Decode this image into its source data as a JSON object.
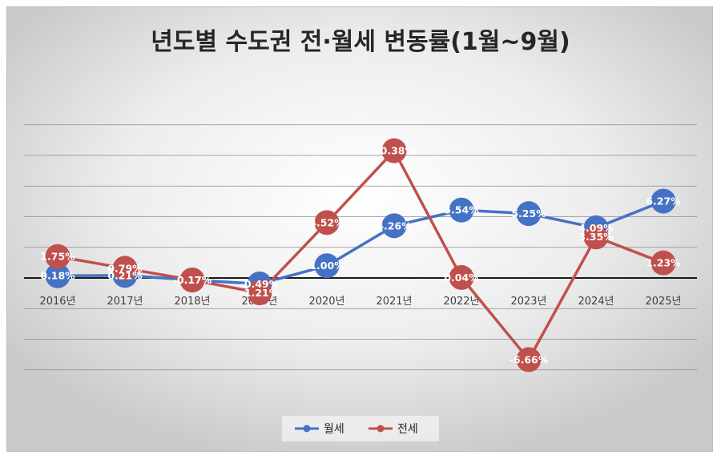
{
  "chart_data": {
    "type": "line",
    "title": "년도별 수도권 전·월세 변동률(1월~9월)",
    "categories": [
      "2016년",
      "2017년",
      "2018년",
      "2019년",
      "2020년",
      "2021년",
      "2022년",
      "2023년",
      "2024년",
      "2025년"
    ],
    "series": [
      {
        "name": "월세",
        "color": "#4472c4",
        "values": [
          0.18,
          0.21,
          -0.17,
          -0.49,
          1.0,
          4.26,
          5.54,
          5.25,
          4.09,
          6.27
        ],
        "labels": [
          "0.18%",
          "0.21%",
          "-0.17%",
          "-0.49%",
          "1.00%",
          "4.26%",
          "5.54%",
          "5.25%",
          "4.09%",
          "6.27%"
        ]
      },
      {
        "name": "전세",
        "color": "#c0504d",
        "values": [
          1.75,
          0.79,
          -0.17,
          -1.21,
          4.52,
          10.38,
          0.04,
          -6.66,
          3.35,
          1.23
        ],
        "labels": [
          "1.75%",
          "0.79%",
          "-0.17%",
          "-1.21%",
          "4.52%",
          "10.38%",
          "0.04%",
          "-6.66%",
          "3.35%",
          "1.23%"
        ]
      }
    ],
    "ylim": [
      -7.5,
      12.5
    ],
    "grid": true,
    "legend": "bottom"
  }
}
